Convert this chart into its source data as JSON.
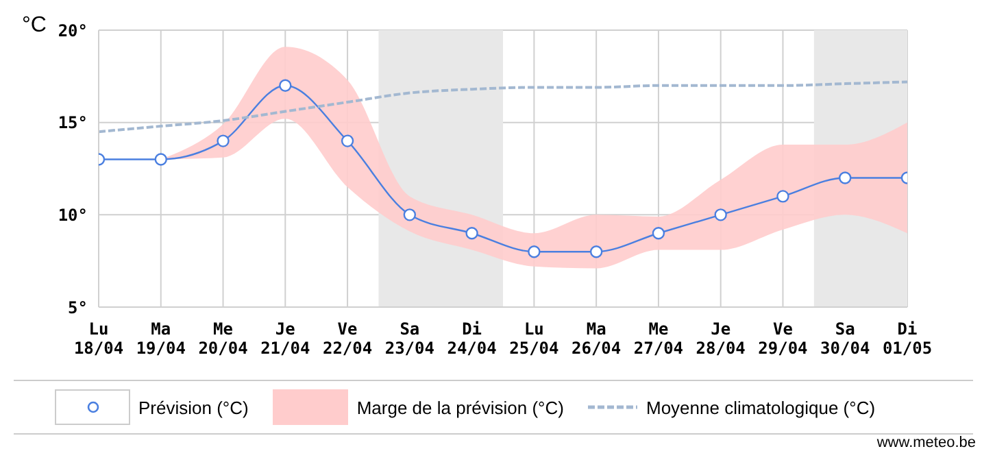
{
  "chart_data": {
    "type": "line",
    "ylabel": "°C",
    "categories": [
      "Lu 18/04",
      "Ma 19/04",
      "Me 20/04",
      "Je 21/04",
      "Ve 22/04",
      "Sa 23/04",
      "Di 24/04",
      "Lu 25/04",
      "Ma 26/04",
      "Me 27/04",
      "Je 28/04",
      "Ve 29/04",
      "Sa 30/04",
      "Di 01/05"
    ],
    "series": [
      {
        "name": "Prévision (°C)",
        "color": "#4a7fe0",
        "marker": "circle",
        "values": [
          13,
          13,
          14,
          17,
          14,
          10,
          9,
          8,
          8,
          9,
          10,
          11,
          12,
          12
        ]
      },
      {
        "name": "Marge de la prévision (°C)",
        "type": "area",
        "color": "#ffcccc",
        "values": [
          null,
          null,
          null,
          null,
          null,
          null,
          null,
          null,
          null,
          null,
          null,
          null,
          null,
          null
        ],
        "lower": [
          null,
          13,
          13.1,
          15.2,
          11.5,
          9.1,
          8.1,
          7.2,
          7.1,
          8.1,
          8.1,
          9.2,
          10,
          9
        ],
        "upper": [
          null,
          13,
          14.9,
          19.1,
          17.3,
          11,
          10,
          9,
          10,
          9.9,
          11.9,
          13.8,
          13.8,
          15
        ]
      },
      {
        "name": "Moyenne climatologique (°C)",
        "color": "#a3b8d1",
        "line_style": "dashed",
        "marker": "none",
        "values": [
          14.5,
          14.8,
          15.1,
          15.6,
          16.1,
          16.6,
          16.8,
          16.9,
          16.9,
          17.0,
          17.0,
          17.0,
          17.1,
          17.2
        ]
      }
    ],
    "bands": [
      {
        "axis": "x",
        "from": "Sa 23/04",
        "to": "Di 24/04",
        "color": "#e8e8e8"
      },
      {
        "axis": "x",
        "from": "Sa 30/04",
        "to": "Di 01/05",
        "color": "#e8e8e8"
      }
    ],
    "ylim": [
      5,
      20
    ],
    "yticks": [
      {
        "value": 5,
        "label": "5°"
      },
      {
        "value": 10,
        "label": "10°"
      },
      {
        "value": 15,
        "label": "15°"
      },
      {
        "value": 20,
        "label": "20°"
      }
    ],
    "grid": true,
    "legend": "bottom",
    "annotations": [
      "www.meteo.be"
    ]
  }
}
